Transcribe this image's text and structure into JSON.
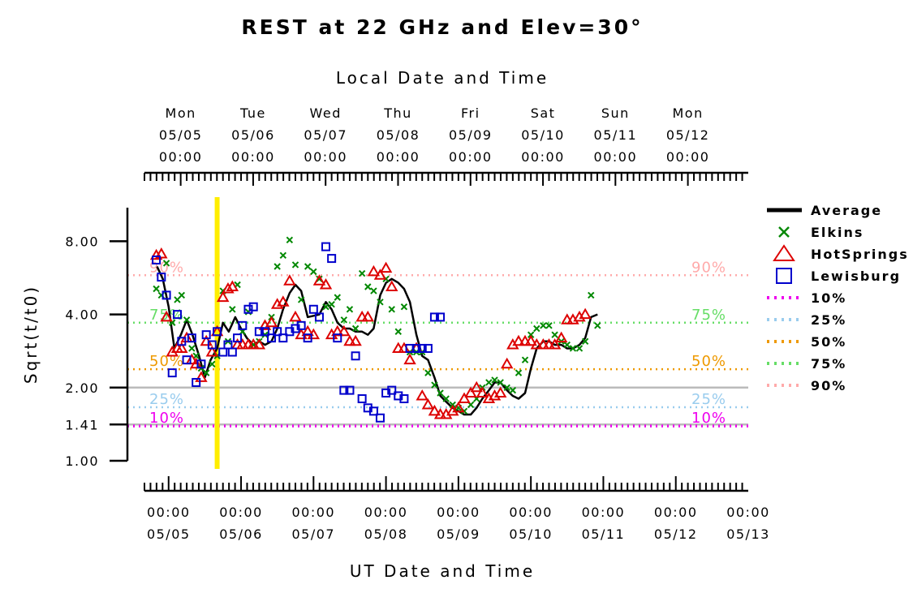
{
  "chart_data": {
    "type": "scatter",
    "title": "REST at 22 GHz and Elev=30°",
    "xlabel": "UT Date and Time",
    "x2label": "Local Date and Time",
    "ylabel": "Sqrt(t/t0)",
    "y_scale": "log",
    "ylim": [
      1.0,
      11.0
    ],
    "y_ticks": [
      1.0,
      1.41,
      2.0,
      4.0,
      8.0
    ],
    "y_tick_labels": [
      "1.00",
      "1.41",
      "2.00",
      "4.00",
      "8.00"
    ],
    "xlim": [
      "2025-05-04T16:00",
      "2025-05-13T00:00"
    ],
    "x_ticks": [
      {
        "day": 5,
        "time": "00:00",
        "date": "05/05"
      },
      {
        "day": 6,
        "time": "00:00",
        "date": "05/06"
      },
      {
        "day": 7,
        "time": "00:00",
        "date": "05/07"
      },
      {
        "day": 8,
        "time": "00:00",
        "date": "05/08"
      },
      {
        "day": 9,
        "time": "00:00",
        "date": "05/09"
      },
      {
        "day": 10,
        "time": "00:00",
        "date": "05/10"
      },
      {
        "day": 11,
        "time": "00:00",
        "date": "05/11"
      },
      {
        "day": 12,
        "time": "00:00",
        "date": "05/12"
      },
      {
        "day": 13,
        "time": "00:00",
        "date": "05/13"
      }
    ],
    "x2_ticks": [
      {
        "day": 5.167,
        "weekday": "Mon",
        "date": "05/05",
        "time": "00:00"
      },
      {
        "day": 6.167,
        "weekday": "Tue",
        "date": "05/06",
        "time": "00:00"
      },
      {
        "day": 7.167,
        "weekday": "Wed",
        "date": "05/07",
        "time": "00:00"
      },
      {
        "day": 8.167,
        "weekday": "Thu",
        "date": "05/08",
        "time": "00:00"
      },
      {
        "day": 9.167,
        "weekday": "Fri",
        "date": "05/09",
        "time": "00:00"
      },
      {
        "day": 10.167,
        "weekday": "Sat",
        "date": "05/10",
        "time": "00:00"
      },
      {
        "day": 11.167,
        "weekday": "Sun",
        "date": "05/11",
        "time": "00:00"
      },
      {
        "day": 12.167,
        "weekday": "Mon",
        "date": "05/12",
        "time": "00:00"
      }
    ],
    "now_marker_day": 5.67,
    "reference_lines": [
      1.41,
      2.0
    ],
    "percentiles": [
      {
        "label": "10%",
        "value": 1.39,
        "color": "#ee00ee"
      },
      {
        "label": "25%",
        "value": 1.66,
        "color": "#99ccee"
      },
      {
        "label": "50%",
        "value": 2.38,
        "color": "#ee9900"
      },
      {
        "label": "75%",
        "value": 3.7,
        "color": "#66dd66"
      },
      {
        "label": "90%",
        "value": 5.8,
        "color": "#ffaaaa"
      }
    ],
    "legend_position": "right",
    "series": [
      {
        "name": "Average",
        "kind": "line",
        "color": "#000000",
        "points": [
          [
            4.84,
            6.3
          ],
          [
            4.92,
            5.6
          ],
          [
            5.0,
            4.3
          ],
          [
            5.08,
            2.9
          ],
          [
            5.17,
            3.3
          ],
          [
            5.25,
            3.8
          ],
          [
            5.33,
            3.3
          ],
          [
            5.42,
            2.7
          ],
          [
            5.5,
            2.2
          ],
          [
            5.58,
            2.6
          ],
          [
            5.67,
            2.9
          ],
          [
            5.75,
            3.7
          ],
          [
            5.83,
            3.4
          ],
          [
            5.92,
            3.9
          ],
          [
            6.0,
            3.5
          ],
          [
            6.08,
            3.2
          ],
          [
            6.17,
            3.0
          ],
          [
            6.25,
            3.1
          ],
          [
            6.33,
            3.0
          ],
          [
            6.42,
            3.1
          ],
          [
            6.5,
            3.5
          ],
          [
            6.58,
            4.2
          ],
          [
            6.67,
            4.9
          ],
          [
            6.75,
            5.3
          ],
          [
            6.83,
            5.0
          ],
          [
            6.92,
            3.9
          ],
          [
            7.0,
            3.95
          ],
          [
            7.08,
            4.0
          ],
          [
            7.17,
            4.5
          ],
          [
            7.25,
            4.2
          ],
          [
            7.33,
            3.7
          ],
          [
            7.42,
            3.5
          ],
          [
            7.5,
            3.5
          ],
          [
            7.58,
            3.4
          ],
          [
            7.67,
            3.4
          ],
          [
            7.75,
            3.3
          ],
          [
            7.83,
            3.5
          ],
          [
            7.92,
            4.8
          ],
          [
            8.0,
            5.4
          ],
          [
            8.08,
            5.6
          ],
          [
            8.17,
            5.4
          ],
          [
            8.25,
            5.1
          ],
          [
            8.33,
            4.5
          ],
          [
            8.42,
            3.3
          ],
          [
            8.5,
            2.7
          ],
          [
            8.58,
            2.6
          ],
          [
            8.67,
            2.2
          ],
          [
            8.75,
            1.85
          ],
          [
            8.83,
            1.75
          ],
          [
            8.92,
            1.65
          ],
          [
            9.0,
            1.6
          ],
          [
            9.08,
            1.55
          ],
          [
            9.17,
            1.55
          ],
          [
            9.25,
            1.65
          ],
          [
            9.33,
            1.8
          ],
          [
            9.42,
            1.95
          ],
          [
            9.5,
            2.1
          ],
          [
            9.58,
            2.1
          ],
          [
            9.67,
            1.95
          ],
          [
            9.75,
            1.85
          ],
          [
            9.83,
            1.8
          ],
          [
            9.92,
            1.9
          ],
          [
            10.0,
            2.4
          ],
          [
            10.08,
            2.9
          ],
          [
            10.17,
            3.1
          ],
          [
            10.25,
            3.1
          ],
          [
            10.33,
            3.0
          ],
          [
            10.42,
            3.0
          ],
          [
            10.5,
            2.9
          ],
          [
            10.58,
            2.9
          ],
          [
            10.67,
            3.0
          ],
          [
            10.75,
            3.2
          ],
          [
            10.83,
            3.9
          ],
          [
            10.92,
            4.0
          ]
        ]
      },
      {
        "name": "Elkins",
        "kind": "x",
        "color": "#008800",
        "points": [
          [
            4.83,
            5.1
          ],
          [
            4.9,
            4.8
          ],
          [
            4.97,
            6.5
          ],
          [
            5.05,
            3.7
          ],
          [
            5.12,
            4.6
          ],
          [
            5.18,
            4.8
          ],
          [
            5.25,
            3.8
          ],
          [
            5.32,
            2.9
          ],
          [
            5.38,
            2.7
          ],
          [
            5.45,
            2.4
          ],
          [
            5.52,
            2.3
          ],
          [
            5.6,
            2.5
          ],
          [
            5.67,
            2.7
          ],
          [
            5.75,
            5.0
          ],
          [
            5.82,
            3.1
          ],
          [
            5.88,
            4.2
          ],
          [
            5.95,
            5.3
          ],
          [
            6.02,
            3.4
          ],
          [
            6.1,
            4.1
          ],
          [
            6.17,
            3.0
          ],
          [
            6.25,
            3.1
          ],
          [
            6.33,
            3.3
          ],
          [
            6.42,
            3.9
          ],
          [
            6.5,
            6.3
          ],
          [
            6.58,
            7.0
          ],
          [
            6.67,
            8.1
          ],
          [
            6.75,
            6.4
          ],
          [
            6.83,
            4.6
          ],
          [
            6.92,
            6.3
          ],
          [
            7.0,
            6.0
          ],
          [
            7.08,
            5.6
          ],
          [
            7.17,
            4.3
          ],
          [
            7.25,
            4.4
          ],
          [
            7.33,
            4.7
          ],
          [
            7.42,
            3.8
          ],
          [
            7.5,
            4.2
          ],
          [
            7.58,
            3.5
          ],
          [
            7.67,
            5.9
          ],
          [
            7.75,
            5.2
          ],
          [
            7.83,
            5.0
          ],
          [
            7.92,
            4.5
          ],
          [
            8.0,
            5.6
          ],
          [
            8.08,
            4.2
          ],
          [
            8.17,
            3.4
          ],
          [
            8.25,
            4.3
          ],
          [
            8.33,
            2.8
          ],
          [
            8.42,
            2.8
          ],
          [
            8.5,
            2.8
          ],
          [
            8.58,
            2.3
          ],
          [
            8.67,
            2.05
          ],
          [
            8.75,
            1.9
          ],
          [
            8.83,
            1.8
          ],
          [
            8.92,
            1.7
          ],
          [
            9.0,
            1.65
          ],
          [
            9.08,
            1.6
          ],
          [
            9.17,
            1.7
          ],
          [
            9.25,
            1.8
          ],
          [
            9.33,
            2.0
          ],
          [
            9.42,
            2.1
          ],
          [
            9.5,
            2.15
          ],
          [
            9.58,
            2.1
          ],
          [
            9.67,
            2.0
          ],
          [
            9.75,
            1.95
          ],
          [
            9.83,
            2.3
          ],
          [
            9.92,
            2.6
          ],
          [
            10.0,
            3.3
          ],
          [
            10.08,
            3.5
          ],
          [
            10.17,
            3.6
          ],
          [
            10.25,
            3.6
          ],
          [
            10.33,
            3.3
          ],
          [
            10.42,
            3.1
          ],
          [
            10.5,
            3.0
          ],
          [
            10.58,
            2.9
          ],
          [
            10.67,
            2.9
          ],
          [
            10.75,
            3.1
          ],
          [
            10.83,
            4.8
          ],
          [
            10.92,
            3.6
          ]
        ]
      },
      {
        "name": "HotSprings",
        "kind": "triangle",
        "color": "#dd0000",
        "points": [
          [
            4.83,
            7.0
          ],
          [
            4.9,
            7.1
          ],
          [
            4.97,
            3.9
          ],
          [
            5.05,
            2.8
          ],
          [
            5.12,
            2.9
          ],
          [
            5.18,
            2.9
          ],
          [
            5.25,
            3.2
          ],
          [
            5.32,
            2.6
          ],
          [
            5.38,
            2.5
          ],
          [
            5.45,
            2.2
          ],
          [
            5.52,
            3.1
          ],
          [
            5.6,
            2.8
          ],
          [
            5.67,
            3.4
          ],
          [
            5.75,
            4.7
          ],
          [
            5.82,
            5.1
          ],
          [
            5.88,
            5.2
          ],
          [
            5.95,
            3.0
          ],
          [
            6.02,
            3.0
          ],
          [
            6.1,
            3.0
          ],
          [
            6.17,
            3.0
          ],
          [
            6.25,
            3.0
          ],
          [
            6.33,
            3.6
          ],
          [
            6.42,
            3.7
          ],
          [
            6.5,
            4.4
          ],
          [
            6.58,
            4.5
          ],
          [
            6.67,
            5.5
          ],
          [
            6.75,
            3.9
          ],
          [
            6.83,
            3.3
          ],
          [
            6.92,
            3.4
          ],
          [
            7.0,
            3.3
          ],
          [
            7.08,
            5.5
          ],
          [
            7.17,
            5.3
          ],
          [
            7.25,
            3.3
          ],
          [
            7.33,
            3.4
          ],
          [
            7.42,
            3.4
          ],
          [
            7.5,
            3.1
          ],
          [
            7.58,
            3.1
          ],
          [
            7.67,
            3.9
          ],
          [
            7.75,
            3.9
          ],
          [
            7.83,
            6.0
          ],
          [
            7.92,
            5.8
          ],
          [
            8.0,
            6.2
          ],
          [
            8.08,
            5.2
          ],
          [
            8.17,
            2.9
          ],
          [
            8.25,
            2.9
          ],
          [
            8.33,
            2.6
          ],
          [
            8.42,
            2.9
          ],
          [
            8.5,
            1.85
          ],
          [
            8.58,
            1.7
          ],
          [
            8.67,
            1.6
          ],
          [
            8.75,
            1.55
          ],
          [
            8.83,
            1.55
          ],
          [
            8.92,
            1.6
          ],
          [
            9.0,
            1.65
          ],
          [
            9.08,
            1.8
          ],
          [
            9.17,
            1.9
          ],
          [
            9.25,
            2.0
          ],
          [
            9.33,
            1.9
          ],
          [
            9.42,
            1.8
          ],
          [
            9.5,
            1.85
          ],
          [
            9.58,
            1.9
          ],
          [
            9.67,
            2.5
          ],
          [
            9.75,
            3.0
          ],
          [
            9.83,
            3.1
          ],
          [
            9.92,
            3.1
          ],
          [
            10.0,
            3.1
          ],
          [
            10.08,
            3.0
          ],
          [
            10.17,
            3.0
          ],
          [
            10.25,
            3.0
          ],
          [
            10.33,
            3.0
          ],
          [
            10.42,
            3.2
          ],
          [
            10.5,
            3.8
          ],
          [
            10.58,
            3.8
          ],
          [
            10.67,
            3.9
          ],
          [
            10.75,
            4.0
          ]
        ]
      },
      {
        "name": "Lewisburg",
        "kind": "square",
        "color": "#0000cc",
        "points": [
          [
            4.83,
            6.7
          ],
          [
            4.9,
            5.7
          ],
          [
            4.97,
            4.8
          ],
          [
            5.05,
            2.3
          ],
          [
            5.12,
            4.0
          ],
          [
            5.18,
            3.1
          ],
          [
            5.25,
            2.6
          ],
          [
            5.32,
            3.2
          ],
          [
            5.38,
            2.1
          ],
          [
            5.45,
            2.5
          ],
          [
            5.52,
            3.3
          ],
          [
            5.6,
            3.0
          ],
          [
            5.67,
            3.4
          ],
          [
            5.75,
            2.8
          ],
          [
            5.82,
            3.0
          ],
          [
            5.88,
            2.8
          ],
          [
            5.95,
            3.2
          ],
          [
            6.02,
            3.6
          ],
          [
            6.1,
            4.2
          ],
          [
            6.17,
            4.3
          ],
          [
            6.25,
            3.4
          ],
          [
            6.33,
            3.4
          ],
          [
            6.42,
            3.2
          ],
          [
            6.5,
            3.4
          ],
          [
            6.58,
            3.2
          ],
          [
            6.67,
            3.4
          ],
          [
            6.75,
            3.5
          ],
          [
            6.83,
            3.6
          ],
          [
            6.92,
            3.2
          ],
          [
            7.0,
            4.2
          ],
          [
            7.08,
            3.9
          ],
          [
            7.17,
            7.6
          ],
          [
            7.25,
            6.8
          ],
          [
            7.33,
            3.2
          ],
          [
            7.42,
            1.95
          ],
          [
            7.5,
            1.95
          ],
          [
            7.58,
            2.7
          ],
          [
            7.67,
            1.8
          ],
          [
            7.75,
            1.65
          ],
          [
            7.83,
            1.6
          ],
          [
            7.92,
            1.5
          ],
          [
            8.0,
            1.9
          ],
          [
            8.08,
            1.95
          ],
          [
            8.17,
            1.85
          ],
          [
            8.25,
            1.8
          ],
          [
            8.33,
            2.9
          ],
          [
            8.42,
            2.9
          ],
          [
            8.5,
            2.9
          ],
          [
            8.58,
            2.9
          ],
          [
            8.67,
            3.9
          ],
          [
            8.75,
            3.9
          ]
        ]
      }
    ]
  }
}
